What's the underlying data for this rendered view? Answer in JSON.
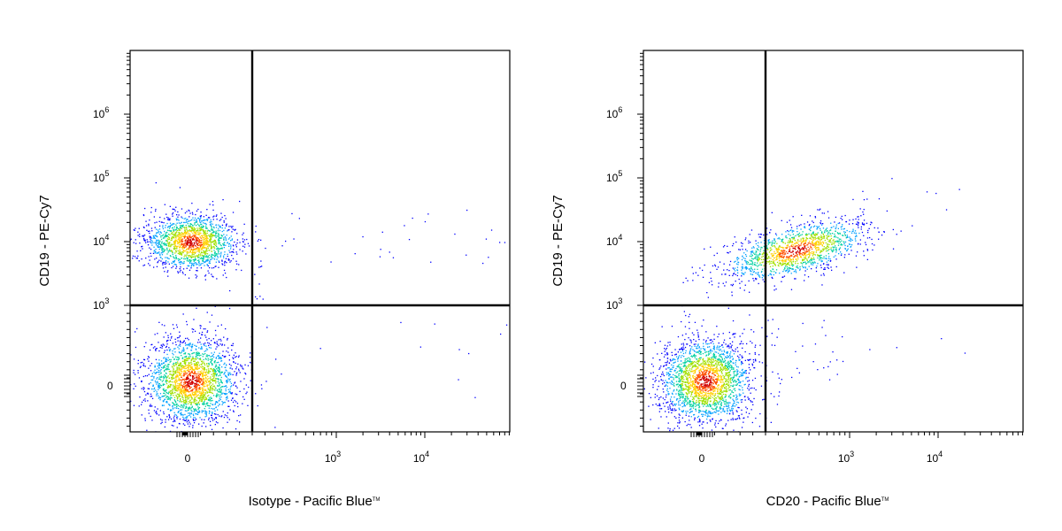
{
  "chart_data": [
    {
      "type": "scatter",
      "xlabel": "Isotype - Pacific Blue",
      "xlabel_mark": "TM",
      "ylabel": "CD19 - PE-Cy7",
      "x_scale": "biexponential",
      "y_scale": "biexponential",
      "x_ticks": [
        {
          "value": 0,
          "base": "0",
          "exp": ""
        },
        {
          "value": 1000,
          "base": "10",
          "exp": "3"
        },
        {
          "value": 10000,
          "base": "10",
          "exp": "4"
        }
      ],
      "y_ticks": [
        {
          "value": 0,
          "base": "0",
          "exp": ""
        },
        {
          "value": 1000,
          "base": "10",
          "exp": "3"
        },
        {
          "value": 10000,
          "base": "10",
          "exp": "4"
        },
        {
          "value": 100000,
          "base": "10",
          "exp": "5"
        },
        {
          "value": 1000000,
          "base": "10",
          "exp": "6"
        }
      ],
      "gate": {
        "x": 150,
        "y": 1000
      },
      "populations": [
        {
          "x": 0,
          "y": 10000,
          "density": "high"
        },
        {
          "x": 0,
          "y": 0,
          "density": "high"
        }
      ]
    },
    {
      "type": "scatter",
      "xlabel": "CD20 - Pacific Blue",
      "xlabel_mark": "TM",
      "ylabel": "CD19 - PE-Cy7",
      "x_scale": "biexponential",
      "y_scale": "biexponential",
      "x_ticks": [
        {
          "value": 0,
          "base": "0",
          "exp": ""
        },
        {
          "value": 1000,
          "base": "10",
          "exp": "3"
        },
        {
          "value": 10000,
          "base": "10",
          "exp": "4"
        }
      ],
      "y_ticks": [
        {
          "value": 0,
          "base": "0",
          "exp": ""
        },
        {
          "value": 1000,
          "base": "10",
          "exp": "3"
        },
        {
          "value": 10000,
          "base": "10",
          "exp": "4"
        },
        {
          "value": 100000,
          "base": "10",
          "exp": "5"
        },
        {
          "value": 1000000,
          "base": "10",
          "exp": "6"
        }
      ],
      "gate": {
        "x": 150,
        "y": 1000
      },
      "populations": [
        {
          "x": 200,
          "y": 9000,
          "density": "high"
        },
        {
          "x": 0,
          "y": 0,
          "density": "high"
        }
      ]
    }
  ],
  "colors": {
    "density_scale": [
      "#0000ff",
      "#00a0ff",
      "#00d0a0",
      "#a0e000",
      "#ffd000",
      "#ff5000",
      "#d00000"
    ],
    "gate_line": "#000000"
  }
}
